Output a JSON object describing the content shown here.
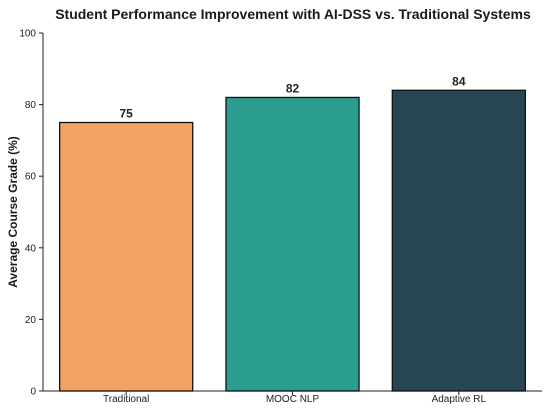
{
  "chart_data": {
    "type": "bar",
    "title": "Student Performance Improvement with AI-DSS vs. Traditional Systems",
    "xlabel": "",
    "ylabel": "Average Course Grade (%)",
    "ylim": [
      0,
      100
    ],
    "yticks": [
      "0",
      "20",
      "40",
      "60",
      "80",
      "100"
    ],
    "categories": [
      "Traditional",
      "MOOC NLP",
      "Adaptive RL"
    ],
    "values": [
      75,
      82,
      84
    ],
    "value_labels": [
      "75",
      "82",
      "84"
    ],
    "colors": [
      "#F4A261",
      "#2A9D8F",
      "#264653"
    ],
    "grid": false
  }
}
